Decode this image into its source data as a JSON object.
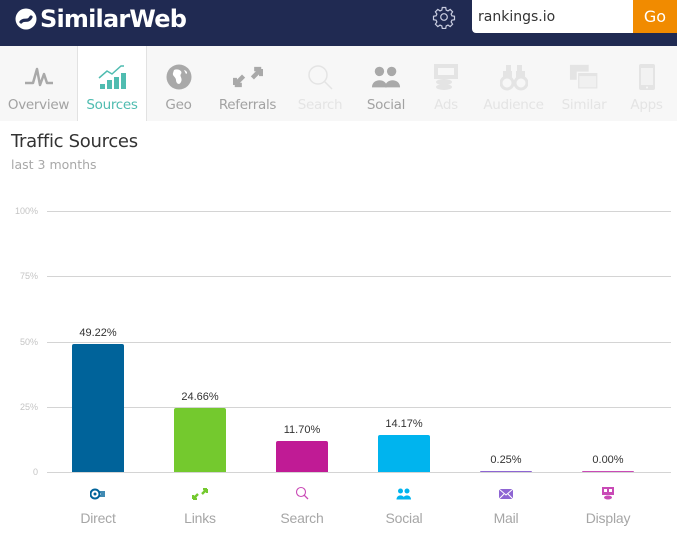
{
  "header": {
    "brand": "SimilarWeb",
    "search_value": "rankings.io",
    "search_placeholder": "",
    "go_label": "Go",
    "brand_bg": "#202a52",
    "go_color": "#f18b00"
  },
  "nav": {
    "items": [
      {
        "label": "Overview",
        "icon": "pulse-icon",
        "state": "normal"
      },
      {
        "label": "Sources",
        "icon": "trend-bars-icon",
        "state": "active"
      },
      {
        "label": "Geo",
        "icon": "globe-icon",
        "state": "normal"
      },
      {
        "label": "Referrals",
        "icon": "arrows-icon",
        "state": "normal"
      },
      {
        "label": "Search",
        "icon": "magnifier-icon",
        "state": "disabled"
      },
      {
        "label": "Social",
        "icon": "people-icon",
        "state": "normal"
      },
      {
        "label": "Ads",
        "icon": "ads-icon",
        "state": "disabled"
      },
      {
        "label": "Audience",
        "icon": "binoculars-icon",
        "state": "disabled"
      },
      {
        "label": "Similar",
        "icon": "windows-icon",
        "state": "disabled"
      },
      {
        "label": "Apps",
        "icon": "phone-icon",
        "state": "disabled"
      }
    ]
  },
  "section": {
    "title": "Traffic Sources",
    "subtitle": "last 3 months"
  },
  "chart_data": {
    "type": "bar",
    "title": "Traffic Sources",
    "subtitle": "last 3 months",
    "xlabel": "",
    "ylabel": "",
    "ylim": [
      0,
      100
    ],
    "yticks": [
      "0",
      "25%",
      "50%",
      "75%",
      "100%"
    ],
    "grid": true,
    "legend": "none",
    "categories": [
      "Direct",
      "Links",
      "Search",
      "Social",
      "Mail",
      "Display"
    ],
    "values": [
      49.22,
      24.66,
      11.7,
      14.17,
      0.25,
      0.0
    ],
    "labels": [
      "49.22%",
      "24.66%",
      "11.70%",
      "14.17%",
      "0.25%",
      "0.00%"
    ],
    "colors": [
      "#00639a",
      "#74c92e",
      "#c01b95",
      "#00b4ee",
      "#8e65d3",
      "#c94ab6"
    ],
    "icons": [
      "direct-icon",
      "links-icon",
      "search-icon",
      "social-icon",
      "mail-icon",
      "display-icon"
    ]
  }
}
